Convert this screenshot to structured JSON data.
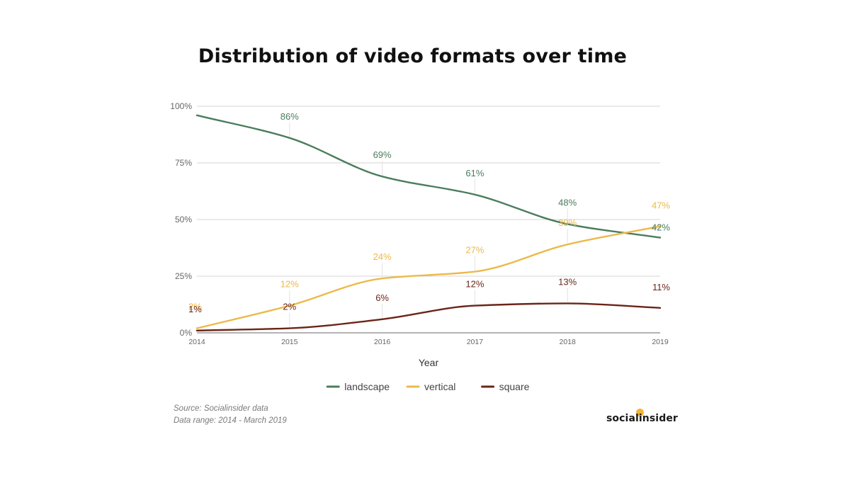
{
  "chart_data": {
    "type": "line",
    "title": "Distribution of video formats over time",
    "xlabel": "Year",
    "ylabel": "",
    "x": [
      "2014",
      "2015",
      "2016",
      "2017",
      "2018",
      "2019"
    ],
    "ylim": [
      0,
      100
    ],
    "yticks": [
      "0%",
      "25%",
      "50%",
      "75%",
      "100%"
    ],
    "grid": true,
    "legend_position": "bottom",
    "series": [
      {
        "name": "landscape",
        "color": "#4a7d5c",
        "values": [
          96,
          86,
          69,
          61,
          48,
          42
        ],
        "labels": [
          "",
          "86%",
          "69%",
          "61%",
          "48%",
          "42%"
        ]
      },
      {
        "name": "vertical",
        "color": "#ecb94b",
        "values": [
          2,
          12,
          24,
          27,
          39,
          47
        ],
        "labels": [
          "2%",
          "12%",
          "24%",
          "27%",
          "39%",
          "47%"
        ]
      },
      {
        "name": "square",
        "color": "#6b2518",
        "values": [
          1,
          2,
          6,
          12,
          13,
          11
        ],
        "labels": [
          "1%",
          "2%",
          "6%",
          "12%",
          "13%",
          "11%"
        ]
      }
    ]
  },
  "footer": {
    "source": "Source: Socialinsider data",
    "range": "Data range: 2014 - March 2019"
  },
  "brand": {
    "name": "socialinsider"
  }
}
